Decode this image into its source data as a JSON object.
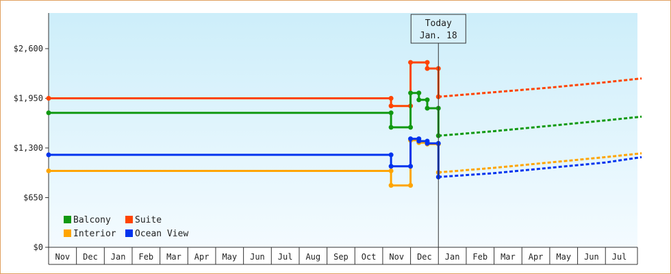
{
  "chart_data": {
    "type": "line",
    "x_axis_months": [
      "Nov",
      "Dec",
      "Jan",
      "Feb",
      "Mar",
      "Apr",
      "May",
      "Jun",
      "Jul",
      "Aug",
      "Sep",
      "Oct",
      "Nov",
      "Dec",
      "Jan",
      "Feb",
      "Mar",
      "Apr",
      "May",
      "Jun",
      "Jul"
    ],
    "y_ticks": [
      "$0",
      "$650",
      "$1,300",
      "$1,950",
      "$2,600"
    ],
    "ylim": [
      0,
      2600
    ],
    "y_tick_values": [
      0,
      650,
      1300,
      1950,
      2600
    ],
    "today_label_1": "Today",
    "today_label_2": "Jan. 18",
    "today_index": 14.0,
    "legend_placement": "bottom-left",
    "colors": {
      "Balcony": "#119911",
      "Suite": "#ff4400",
      "Interior": "#ffa500",
      "Ocean View": "#0033ee"
    },
    "series": [
      {
        "name": "Suite",
        "history": [
          [
            0,
            1950
          ],
          [
            12.3,
            1950
          ],
          [
            12.3,
            1850
          ],
          [
            13.0,
            1850
          ],
          [
            13.0,
            2420
          ],
          [
            13.6,
            2420
          ],
          [
            13.6,
            2340
          ],
          [
            14.0,
            2340
          ],
          [
            14.0,
            1970
          ]
        ],
        "forecast": [
          [
            14.0,
            1970
          ],
          [
            16,
            2030
          ],
          [
            18,
            2090
          ],
          [
            20,
            2160
          ],
          [
            21.3,
            2210
          ]
        ]
      },
      {
        "name": "Balcony",
        "history": [
          [
            0,
            1760
          ],
          [
            12.3,
            1760
          ],
          [
            12.3,
            1570
          ],
          [
            13.0,
            1570
          ],
          [
            13.0,
            2020
          ],
          [
            13.3,
            2020
          ],
          [
            13.3,
            1930
          ],
          [
            13.6,
            1930
          ],
          [
            13.6,
            1820
          ],
          [
            14.0,
            1820
          ],
          [
            14.0,
            1460
          ]
        ],
        "forecast": [
          [
            14.0,
            1460
          ],
          [
            16,
            1520
          ],
          [
            18,
            1590
          ],
          [
            20,
            1660
          ],
          [
            21.3,
            1710
          ]
        ]
      },
      {
        "name": "Interior",
        "history": [
          [
            0,
            1000
          ],
          [
            12.3,
            1000
          ],
          [
            12.3,
            810
          ],
          [
            13.0,
            810
          ],
          [
            13.0,
            1400
          ],
          [
            13.3,
            1400
          ],
          [
            13.3,
            1370
          ],
          [
            13.6,
            1370
          ],
          [
            13.6,
            1350
          ],
          [
            14.0,
            1350
          ],
          [
            14.0,
            980
          ]
        ],
        "forecast": [
          [
            14.0,
            980
          ],
          [
            16,
            1040
          ],
          [
            18,
            1110
          ],
          [
            20,
            1180
          ],
          [
            21.3,
            1230
          ]
        ]
      },
      {
        "name": "Ocean View",
        "history": [
          [
            0,
            1210
          ],
          [
            12.3,
            1210
          ],
          [
            12.3,
            1060
          ],
          [
            13.0,
            1060
          ],
          [
            13.0,
            1420
          ],
          [
            13.3,
            1420
          ],
          [
            13.3,
            1390
          ],
          [
            13.6,
            1390
          ],
          [
            13.6,
            1360
          ],
          [
            14.0,
            1360
          ],
          [
            14.0,
            920
          ]
        ],
        "forecast": [
          [
            14.0,
            920
          ],
          [
            16,
            970
          ],
          [
            18,
            1040
          ],
          [
            20,
            1110
          ],
          [
            21.3,
            1180
          ]
        ]
      }
    ],
    "legend": [
      "Balcony",
      "Suite",
      "Interior",
      "Ocean View"
    ]
  }
}
